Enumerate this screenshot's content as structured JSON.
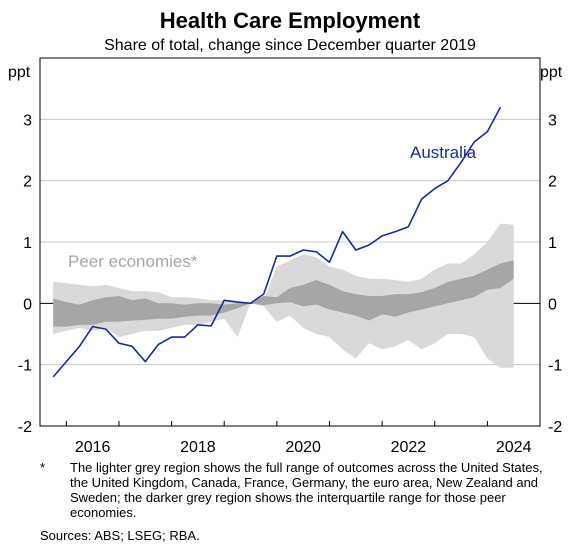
{
  "chart_data": {
    "type": "area",
    "title": "Health Care Employment",
    "subtitle": "Share of total, change since December quarter 2019",
    "ylabel_left": "ppt",
    "ylabel_right": "ppt",
    "ylim": [
      -2,
      4
    ],
    "yticks": [
      -2,
      -1,
      0,
      1,
      2,
      3
    ],
    "xlim": [
      2015.5,
      2025.0
    ],
    "xticks": [
      2016,
      2018,
      2020,
      2022,
      2024
    ],
    "grid": true,
    "x": [
      2015.75,
      2016.0,
      2016.25,
      2016.5,
      2016.75,
      2017.0,
      2017.25,
      2017.5,
      2017.75,
      2018.0,
      2018.25,
      2018.5,
      2018.75,
      2019.0,
      2019.25,
      2019.5,
      2019.75,
      2020.0,
      2020.25,
      2020.5,
      2020.75,
      2021.0,
      2021.25,
      2021.5,
      2021.75,
      2022.0,
      2022.25,
      2022.5,
      2022.75,
      2023.0,
      2023.25,
      2023.5,
      2023.75,
      2024.0,
      2024.25,
      2024.5
    ],
    "series": [
      {
        "name": "Australia",
        "color": "#1a2a9c",
        "values": [
          -1.2,
          -0.95,
          -0.7,
          -0.38,
          -0.42,
          -0.65,
          -0.7,
          -0.95,
          -0.67,
          -0.55,
          -0.55,
          -0.35,
          -0.37,
          0.05,
          0.02,
          0.0,
          0.15,
          0.77,
          0.77,
          0.87,
          0.84,
          0.67,
          1.17,
          0.87,
          0.95,
          1.1,
          1.17,
          1.25,
          1.7,
          1.87,
          2.0,
          2.3,
          2.63,
          2.8,
          3.2,
          null
        ]
      },
      {
        "name": "Peer economies*",
        "color": "#a6a6a6",
        "range_upper": [
          0.35,
          0.33,
          0.3,
          0.28,
          0.3,
          0.25,
          0.2,
          0.2,
          0.18,
          0.1,
          0.1,
          0.08,
          0.05,
          0.05,
          0.03,
          0.0,
          0.05,
          0.6,
          0.7,
          0.8,
          0.75,
          0.6,
          0.55,
          0.45,
          0.4,
          0.4,
          0.38,
          0.35,
          0.4,
          0.55,
          0.65,
          0.65,
          0.8,
          1.0,
          1.3,
          1.28
        ],
        "range_lower": [
          -0.5,
          -0.45,
          -0.4,
          -0.45,
          -0.4,
          -0.55,
          -0.5,
          -0.45,
          -0.45,
          -0.4,
          -0.35,
          -0.35,
          -0.3,
          -0.25,
          -0.55,
          0.0,
          -0.05,
          -0.3,
          -0.2,
          -0.4,
          -0.5,
          -0.55,
          -0.75,
          -0.9,
          -0.65,
          -0.75,
          -0.7,
          -0.6,
          -0.75,
          -0.65,
          -0.5,
          -0.5,
          -0.55,
          -0.9,
          -1.05,
          -1.05
        ],
        "iqr_upper": [
          0.08,
          0.02,
          -0.02,
          0.05,
          0.1,
          0.12,
          0.05,
          0.08,
          0.0,
          0.0,
          -0.02,
          0.0,
          0.0,
          -0.02,
          0.0,
          0.0,
          0.12,
          0.1,
          0.25,
          0.3,
          0.38,
          0.3,
          0.2,
          0.15,
          0.12,
          0.12,
          0.15,
          0.15,
          0.18,
          0.25,
          0.35,
          0.4,
          0.45,
          0.55,
          0.65,
          0.7
        ],
        "iqr_lower": [
          -0.38,
          -0.38,
          -0.35,
          -0.35,
          -0.3,
          -0.3,
          -0.28,
          -0.27,
          -0.25,
          -0.25,
          -0.22,
          -0.2,
          -0.2,
          -0.15,
          -0.08,
          0.0,
          -0.03,
          0.0,
          0.02,
          -0.05,
          -0.02,
          -0.1,
          -0.15,
          -0.2,
          -0.28,
          -0.18,
          -0.22,
          -0.15,
          -0.1,
          -0.05,
          0.0,
          0.05,
          0.1,
          0.22,
          0.25,
          0.4
        ]
      }
    ],
    "annotations": [
      "Australia",
      "Peer economies*"
    ]
  },
  "footnote": {
    "mark": "*",
    "text": "The lighter grey region shows the full range of outcomes across the United States, the United Kingdom, Canada, France, Germany, the euro area, New Zealand and Sweden; the darker grey region shows the interquartile range for those peer economies."
  },
  "sources": "Sources: ABS; LSEG; RBA."
}
